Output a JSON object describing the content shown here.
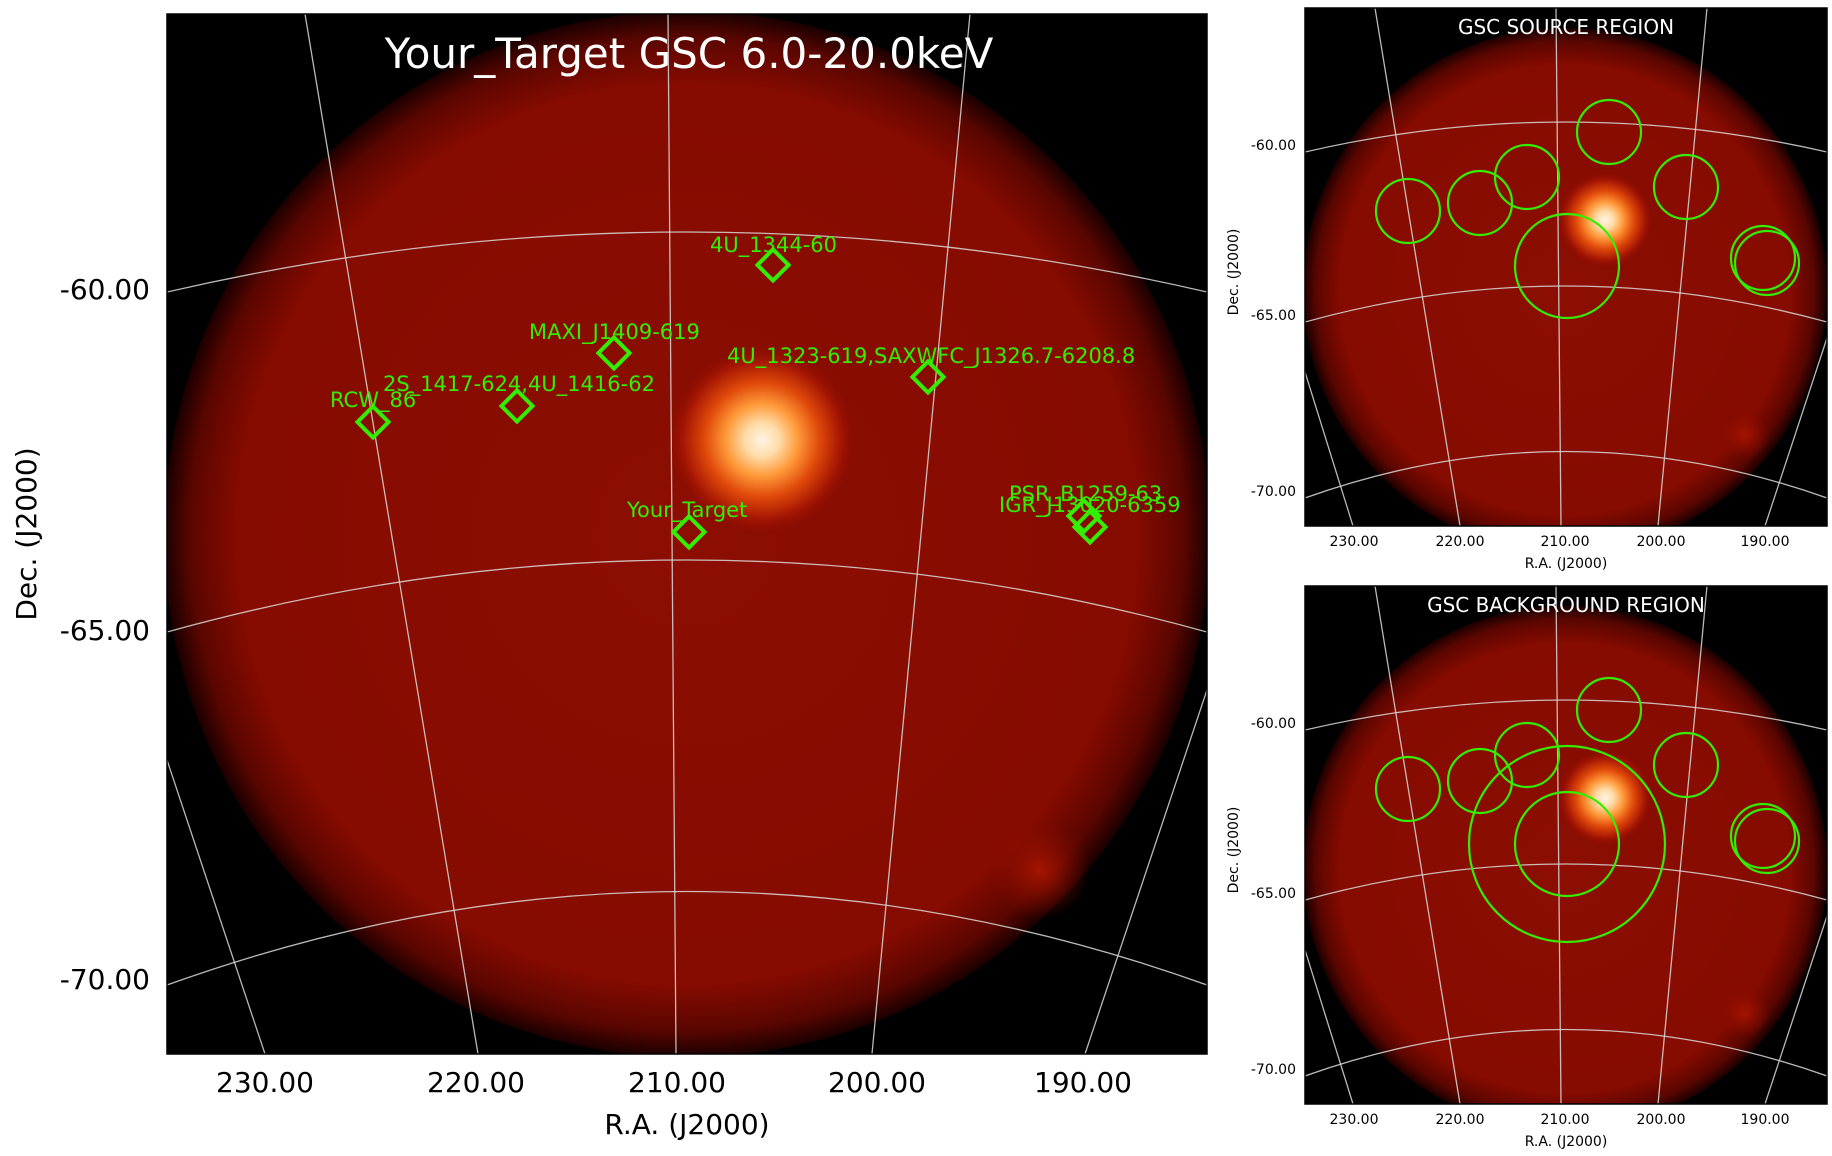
{
  "main": {
    "title": "Your_Target GSC 6.0-20.0keV",
    "xlabel": "R.A. (J2000)",
    "ylabel": "Dec. (J2000)",
    "xticks": [
      "230.00",
      "220.00",
      "210.00",
      "200.00",
      "190.00"
    ],
    "yticks": [
      "-60.00",
      "-65.00",
      "-70.00"
    ],
    "sources": [
      {
        "name": "4U_1344-60"
      },
      {
        "name": "MAXI_J1409-619"
      },
      {
        "name": "4U_1323-619,SAXWFC_J1326.7-6208.8"
      },
      {
        "name": "2S_1417-624,4U_1416-62"
      },
      {
        "name": "RCW_86"
      },
      {
        "name": "Your_Target"
      },
      {
        "name": "PSR_B1259-63"
      },
      {
        "name": "IGR_J13020-6359"
      }
    ]
  },
  "source_panel": {
    "title": "GSC SOURCE REGION",
    "xlabel": "R.A. (J2000)",
    "ylabel": "Dec. (J2000)",
    "xticks": [
      "230.00",
      "220.00",
      "210.00",
      "200.00",
      "190.00"
    ],
    "yticks": [
      "-60.00",
      "-65.00",
      "-70.00"
    ]
  },
  "background_panel": {
    "title": "GSC BACKGROUND REGION",
    "xlabel": "R.A. (J2000)",
    "ylabel": "Dec. (J2000)",
    "xticks": [
      "230.00",
      "220.00",
      "210.00",
      "200.00",
      "190.00"
    ],
    "yticks": [
      "-60.00",
      "-65.00",
      "-70.00"
    ]
  },
  "colors": {
    "marker": "#33ee00",
    "background": "#000000",
    "map": "#8a0b00",
    "grid": "#d9d9d9",
    "title": "#ffffff"
  }
}
